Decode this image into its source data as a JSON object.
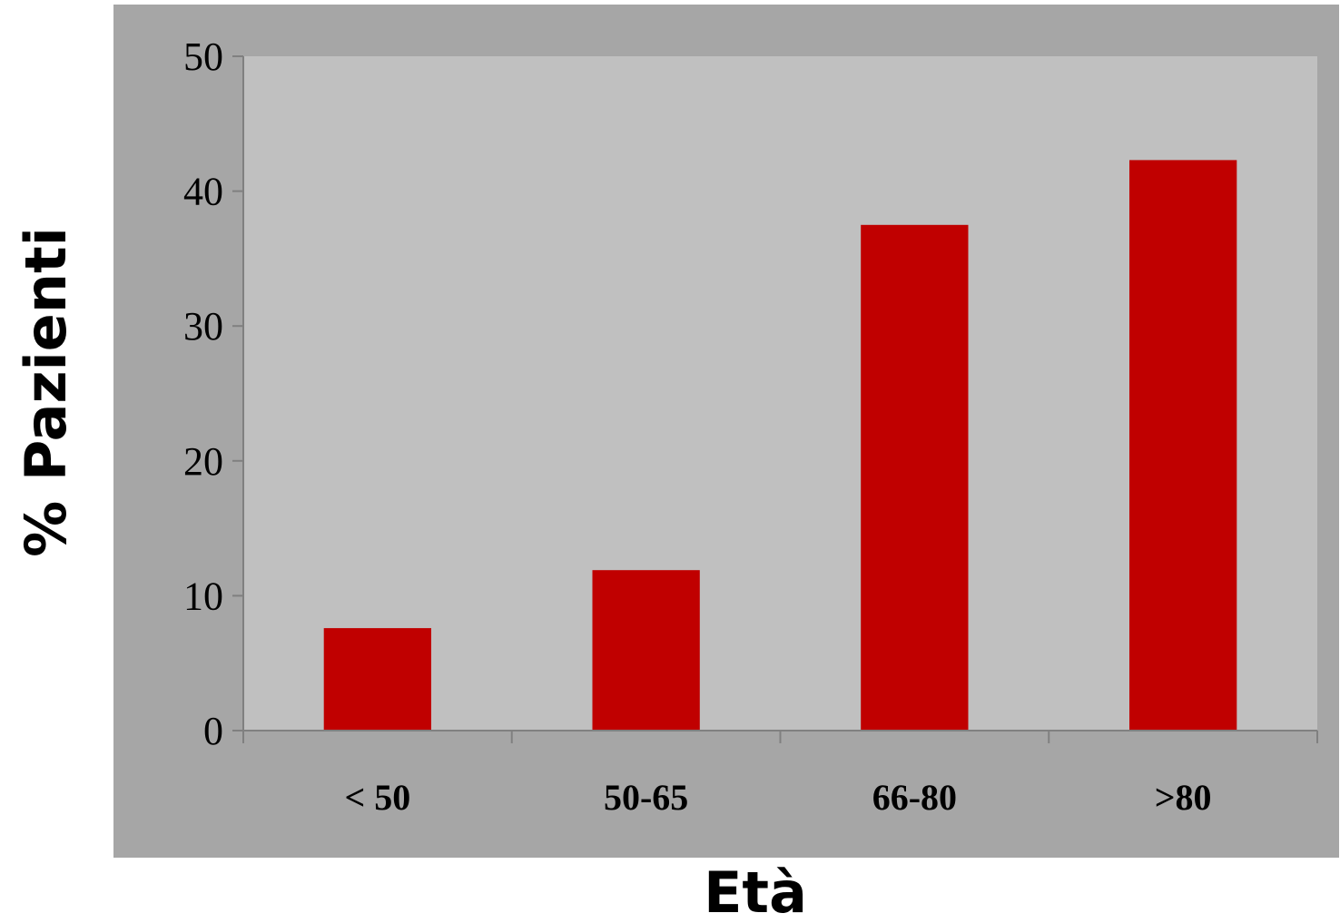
{
  "chart_data": {
    "type": "bar",
    "title": "",
    "xlabel": "Età",
    "ylabel": "% Pazienti",
    "categories": [
      "< 50",
      "50-65",
      "66-80",
      ">80"
    ],
    "values": [
      7.6,
      11.9,
      37.5,
      42.3
    ],
    "ylim": [
      0,
      50
    ],
    "yticks": [
      0,
      10,
      20,
      30,
      40,
      50
    ],
    "ytick_labels": [
      "0",
      "10",
      "20",
      "30",
      "40",
      "50"
    ],
    "grid": false,
    "legend": "none",
    "colors": {
      "bar": "#C00000",
      "plot_area": "#C0C0C0",
      "chart_area": "#A6A6A6",
      "axis": "#808080"
    }
  }
}
